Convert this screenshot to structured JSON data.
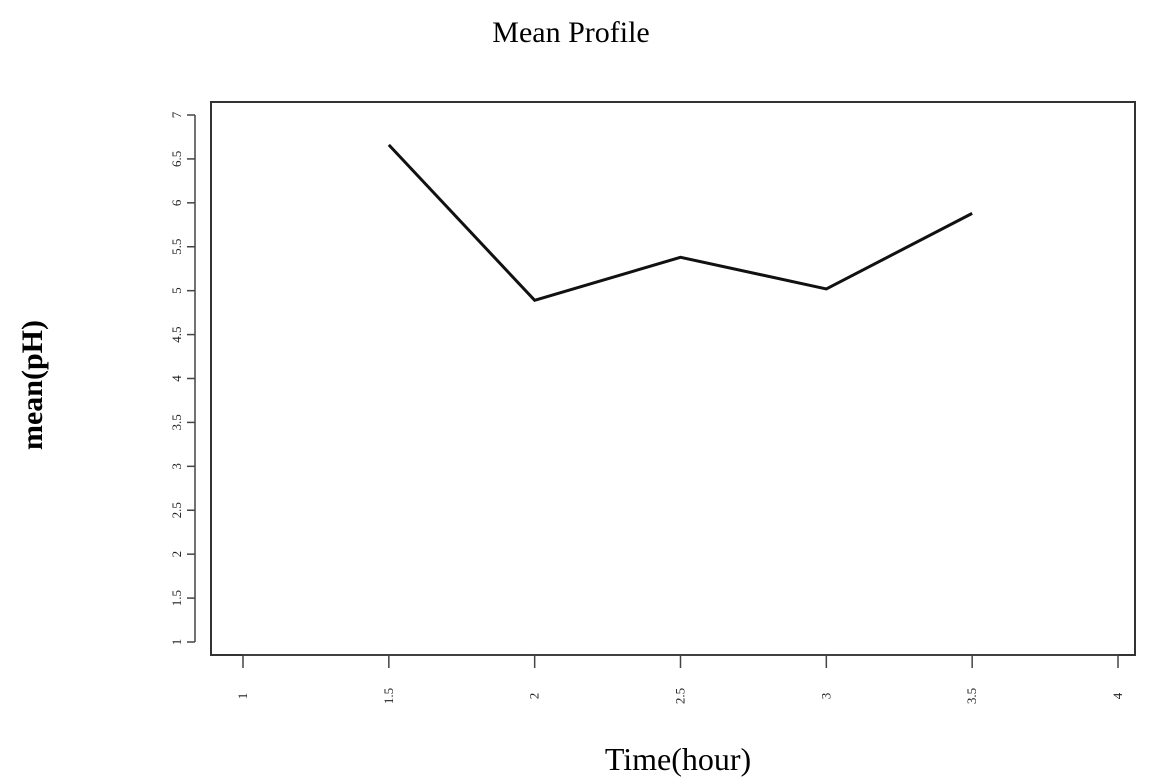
{
  "chart_data": {
    "type": "line",
    "title": "Mean Profile",
    "xlabel": "Time(hour)",
    "ylabel": "mean(pH)",
    "x": [
      1.5,
      2,
      2.5,
      3,
      3.5
    ],
    "series": [
      {
        "values": [
          6.66,
          4.89,
          5.38,
          5.02,
          5.88
        ]
      }
    ],
    "xlim": [
      1,
      4
    ],
    "ylim": [
      1,
      7
    ],
    "xticks": [
      1,
      1.5,
      2,
      2.5,
      3,
      3.5,
      4
    ],
    "xtick_labels": [
      "1",
      "1.5",
      "2",
      "2.5",
      "3",
      "3.5",
      "4"
    ],
    "yticks": [
      1,
      1.5,
      2,
      2.5,
      3,
      3.5,
      4,
      4.5,
      5,
      5.5,
      6,
      6.5,
      7
    ],
    "ytick_labels": [
      "1",
      "1.5",
      "2",
      "2.5",
      "3",
      "3.5",
      "4",
      "4.5",
      "5",
      "5.5",
      "6",
      "6.5",
      "7"
    ],
    "grid": false,
    "line_color": "#111111"
  }
}
